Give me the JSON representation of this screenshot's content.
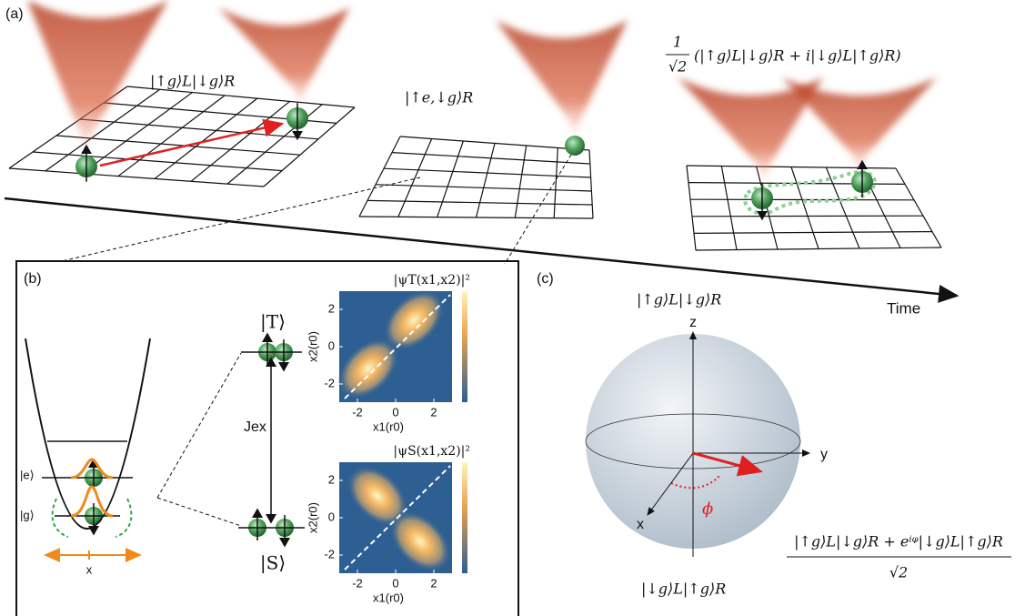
{
  "panel_a": {
    "label": "(a)",
    "states": [
      "|↑g⟩L|↓g⟩R",
      "|↑e,↓g⟩R"
    ],
    "superposition": {
      "numerator": "1",
      "denominator": "√2",
      "expression": "(|↑g⟩L|↓g⟩R + i|↓g⟩L|↑g⟩R)"
    },
    "time_label": "Time"
  },
  "panel_b": {
    "label": "(b)",
    "trap_levels": [
      "|e⟩",
      "|g⟩"
    ],
    "trap_axis": "x",
    "triplet": "|T⟩",
    "singlet": "|S⟩",
    "exchange": "Jex",
    "plots": [
      {
        "title": "|ψT(x1,x2)|²",
        "y_label": "x2(r0)",
        "x_label": "x1(r0)",
        "yticks": [
          2,
          0,
          -2
        ],
        "xticks": [
          -2,
          0,
          2
        ]
      },
      {
        "title": "|ψS(x1,x2)|²",
        "y_label": "x2(r0)",
        "x_label": "x1(r0)",
        "yticks": [
          2,
          0,
          -2
        ],
        "xticks": [
          -2,
          0,
          2
        ]
      }
    ]
  },
  "panel_c": {
    "label": "(c)",
    "north": "|↑g⟩L|↓g⟩R",
    "south": "|↓g⟩L|↑g⟩R",
    "axes": [
      "z",
      "y",
      "x"
    ],
    "angle": "ϕ",
    "equator_state": {
      "numerator": "|↑g⟩L|↓g⟩R + eⁱᵠ|↓g⟩L|↑g⟩R",
      "denominator": "√2"
    }
  }
}
